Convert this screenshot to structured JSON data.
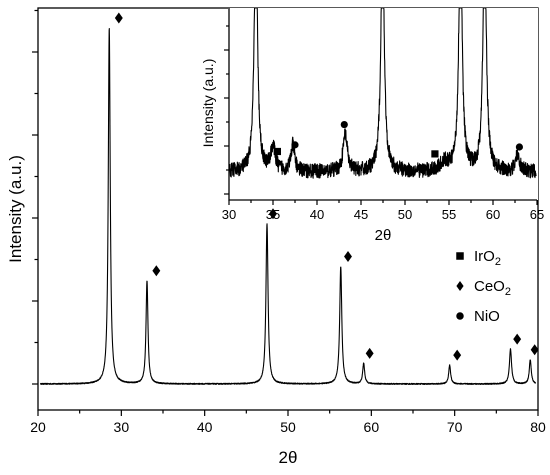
{
  "chart_data": [
    {
      "type": "line",
      "panel": "main",
      "xlabel": "2θ",
      "ylabel": "Intensity (a.u.)",
      "xlim": [
        20,
        80
      ],
      "xticks": [
        20,
        30,
        40,
        50,
        60,
        70,
        80
      ],
      "y_tick_labels": "none",
      "peaks": [
        {
          "x": 28.55,
          "height": 1.0,
          "width": 0.14
        },
        {
          "x": 33.08,
          "height": 0.29,
          "width": 0.14
        },
        {
          "x": 47.48,
          "height": 0.45,
          "width": 0.15
        },
        {
          "x": 56.33,
          "height": 0.33,
          "width": 0.15
        },
        {
          "x": 59.08,
          "height": 0.058,
          "width": 0.14
        },
        {
          "x": 69.4,
          "height": 0.053,
          "width": 0.14
        },
        {
          "x": 76.7,
          "height": 0.098,
          "width": 0.15
        },
        {
          "x": 79.07,
          "height": 0.068,
          "width": 0.14
        }
      ],
      "markers": [
        {
          "x": 29.7,
          "symbol": "diamond",
          "phase": "CeO2"
        },
        {
          "x": 34.2,
          "symbol": "diamond",
          "phase": "CeO2"
        },
        {
          "x": 48.2,
          "symbol": "diamond",
          "phase": "CeO2"
        },
        {
          "x": 57.2,
          "symbol": "diamond",
          "phase": "CeO2"
        },
        {
          "x": 59.8,
          "symbol": "diamond",
          "phase": "CeO2"
        },
        {
          "x": 70.3,
          "symbol": "diamond",
          "phase": "CeO2"
        },
        {
          "x": 77.5,
          "symbol": "diamond",
          "phase": "CeO2"
        },
        {
          "x": 79.6,
          "symbol": "diamond",
          "phase": "CeO2"
        }
      ]
    },
    {
      "type": "line",
      "panel": "inset",
      "xlabel": "2θ",
      "ylabel": "Intensity (a.u.)",
      "xlim": [
        30,
        65
      ],
      "xticks": [
        30,
        35,
        40,
        45,
        50,
        55,
        60,
        65
      ],
      "y_tick_labels": "none",
      "peaks": [
        {
          "x": 33.05,
          "height": 3.0,
          "width": 0.22
        },
        {
          "x": 35.0,
          "height": 0.3,
          "width": 0.3
        },
        {
          "x": 37.25,
          "height": 0.32,
          "width": 0.25
        },
        {
          "x": 43.2,
          "height": 0.46,
          "width": 0.28
        },
        {
          "x": 47.45,
          "height": 3.0,
          "width": 0.22
        },
        {
          "x": 54.5,
          "height": 0.1,
          "width": 0.6
        },
        {
          "x": 56.3,
          "height": 3.0,
          "width": 0.22
        },
        {
          "x": 59.05,
          "height": 3.0,
          "width": 0.22
        },
        {
          "x": 62.8,
          "height": 0.22,
          "width": 0.25
        }
      ],
      "markers": [
        {
          "x": 35.5,
          "symbol": "square",
          "phase": "IrO2"
        },
        {
          "x": 37.5,
          "symbol": "circle",
          "phase": "NiO"
        },
        {
          "x": 43.1,
          "symbol": "circle",
          "phase": "NiO"
        },
        {
          "x": 53.4,
          "symbol": "square",
          "phase": "IrO2"
        },
        {
          "x": 63.0,
          "symbol": "circle",
          "phase": "NiO"
        }
      ]
    }
  ],
  "legend": {
    "placement": "right",
    "entries": [
      {
        "symbol": "square",
        "label": "IrO",
        "subscript": "2"
      },
      {
        "symbol": "diamond",
        "label": "CeO",
        "subscript": "2"
      },
      {
        "symbol": "circle",
        "label": "NiO",
        "subscript": ""
      }
    ]
  }
}
